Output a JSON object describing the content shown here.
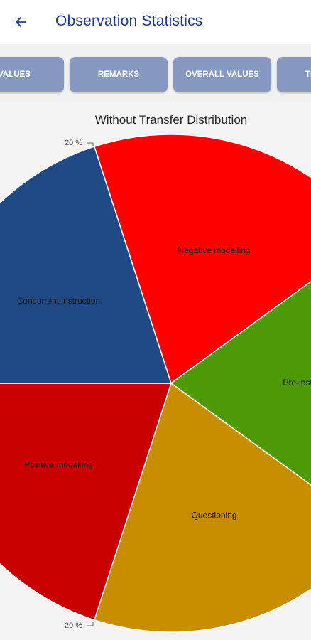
{
  "header": {
    "title": "Observation Statistics",
    "back_icon": "arrow-left-icon"
  },
  "tabs": [
    {
      "label": "VALUES"
    },
    {
      "label": "REMARKS"
    },
    {
      "label": "OVERALL VALUES"
    },
    {
      "label": "TI"
    }
  ],
  "chart_data": {
    "type": "pie",
    "title": "Without Transfer Distribution",
    "slices": [
      {
        "label": "Negative modelling",
        "percent": 20,
        "color": "#ff0000"
      },
      {
        "label": "Pre-instruction",
        "percent": 20,
        "color": "#4e9a06"
      },
      {
        "label": "Questioning",
        "percent": 20,
        "color": "#c98e00"
      },
      {
        "label": "Positive modelling",
        "percent": 20,
        "color": "#c80000"
      },
      {
        "label": "Concurrent instruction",
        "percent": 20,
        "color": "#1f4a85"
      }
    ],
    "outside_labels": [
      "20 %",
      "20 %"
    ]
  }
}
